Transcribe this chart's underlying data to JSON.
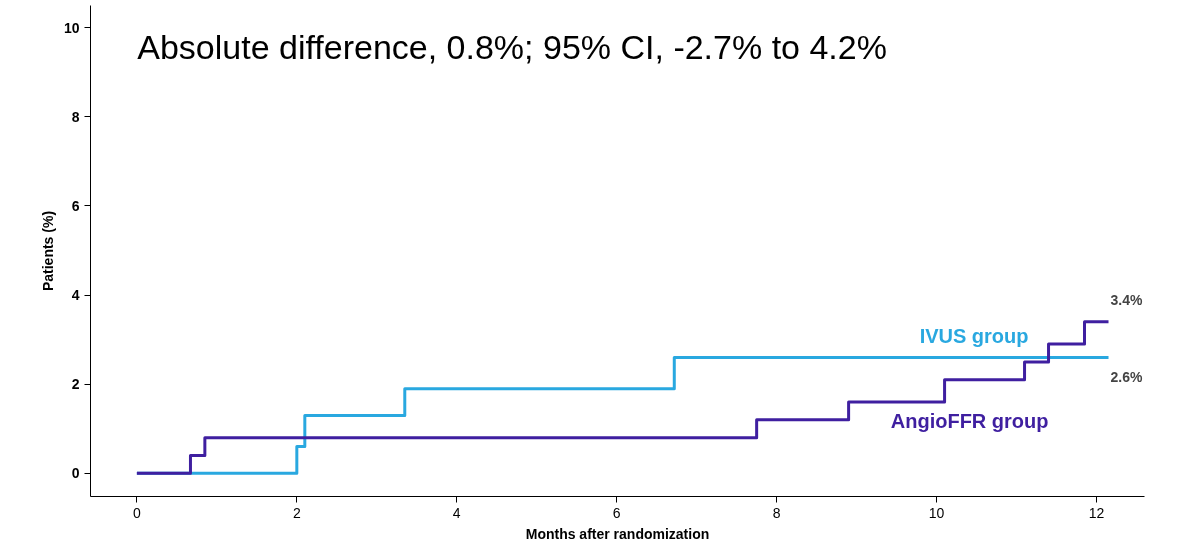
{
  "chart_data": {
    "type": "step",
    "title": "Absolute difference, 0.8%; 95% CI, -2.7% to 4.2%",
    "xlabel": "Months after randomization",
    "ylabel": "Patients (%)",
    "series": [
      {
        "name": "IVUS group",
        "color": "#29a8e0",
        "x": [
          0,
          2.0,
          2.1,
          3.35,
          6.72,
          12.15
        ],
        "values": [
          0,
          0.6,
          1.3,
          1.9,
          2.6,
          2.6
        ]
      },
      {
        "name": "AngioFFR group",
        "color": "#3f1fa0",
        "x": [
          0,
          0.67,
          0.85,
          7.75,
          8.9,
          10.1,
          11.1,
          11.4,
          11.85,
          12.15
        ],
        "values": [
          0,
          0.4,
          0.8,
          1.2,
          1.6,
          2.1,
          2.5,
          2.9,
          3.4,
          3.4
        ]
      }
    ],
    "annotations": [
      {
        "text": "3.4%",
        "x": 12.15,
        "y": 3.4
      },
      {
        "text": "2.6%",
        "x": 12.15,
        "y": 2.6
      }
    ],
    "xlim": [
      -0.58,
      12.6
    ],
    "ylim": [
      -0.52,
      10.5
    ],
    "xticks": [
      0,
      2,
      4,
      6,
      8,
      10,
      12
    ],
    "yticks": [
      0,
      2,
      4,
      6,
      8,
      10
    ],
    "grid": false,
    "line_style": "solid"
  }
}
